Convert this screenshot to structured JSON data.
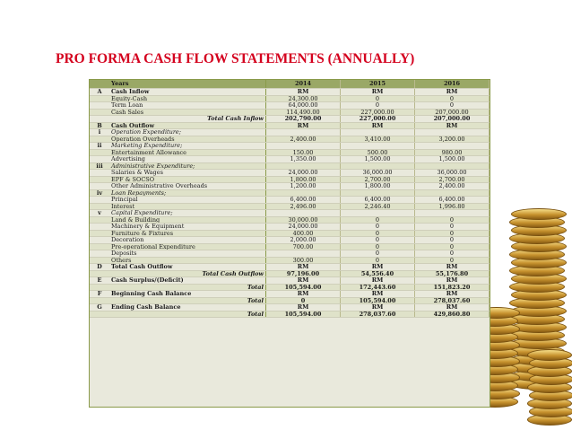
{
  "title": "PRO FORMA CASH FLOW STATEMENTS (ANNUALLY)",
  "table": {
    "header": {
      "label": "",
      "desc": "Years",
      "cols": [
        "2014",
        "2015",
        "2016"
      ]
    },
    "rows": [
      {
        "label": "A",
        "desc": "Cash Inflow",
        "vals": [
          "RM",
          "RM",
          "RM"
        ],
        "style": "bold"
      },
      {
        "label": "",
        "desc": "Equity-Cash",
        "vals": [
          "24,300.00",
          "0",
          "0"
        ],
        "style": ""
      },
      {
        "label": "",
        "desc": "Term Loan",
        "vals": [
          "64,000.00",
          "0",
          "0"
        ],
        "style": ""
      },
      {
        "label": "",
        "desc": "Cash Sales",
        "vals": [
          "114,490.00",
          "227,000.00",
          "207,000.00"
        ],
        "style": ""
      },
      {
        "label": "",
        "desc": "Total Cash Inflow",
        "vals": [
          "202,790.00",
          "227,000.00",
          "207,000.00"
        ],
        "style": "total"
      },
      {
        "label": "B",
        "desc": "Cash Outflow",
        "vals": [
          "RM",
          "RM",
          "RM"
        ],
        "style": "bold"
      },
      {
        "label": "i",
        "desc": "Operation Expenditure;",
        "vals": [
          "",
          "",
          ""
        ],
        "style": "italic"
      },
      {
        "label": "",
        "desc": "Operation Overheads",
        "vals": [
          "2,400.00",
          "3,410.00",
          "3,200.00"
        ],
        "style": ""
      },
      {
        "label": "ii",
        "desc": "Marketing Expenditure;",
        "vals": [
          "",
          "",
          ""
        ],
        "style": "italic"
      },
      {
        "label": "",
        "desc": "Entertainment Allowance",
        "vals": [
          "150.00",
          "500.00",
          "980.00"
        ],
        "style": ""
      },
      {
        "label": "",
        "desc": "Advertising",
        "vals": [
          "1,350.00",
          "1,500.00",
          "1,500.00"
        ],
        "style": ""
      },
      {
        "label": "iii",
        "desc": "Administrative Expenditure;",
        "vals": [
          "",
          "",
          ""
        ],
        "style": "italic"
      },
      {
        "label": "",
        "desc": "Salaries & Wages",
        "vals": [
          "24,000.00",
          "36,000.00",
          "36,000.00"
        ],
        "style": ""
      },
      {
        "label": "",
        "desc": "EPF & SOCSO",
        "vals": [
          "1,800.00",
          "2,700.00",
          "2,700.00"
        ],
        "style": ""
      },
      {
        "label": "",
        "desc": "Other Administrative Overheads",
        "vals": [
          "1,200.00",
          "1,800.00",
          "2,400.00"
        ],
        "style": ""
      },
      {
        "label": "iv",
        "desc": "Loan Repayments;",
        "vals": [
          "",
          "",
          ""
        ],
        "style": "italic"
      },
      {
        "label": "",
        "desc": "Principal",
        "vals": [
          "6,400.00",
          "6,400.00",
          "6,400.00"
        ],
        "style": ""
      },
      {
        "label": "",
        "desc": "Interest",
        "vals": [
          "2,496.00",
          "2,246.40",
          "1,996.80"
        ],
        "style": ""
      },
      {
        "label": "v",
        "desc": "Capital Expenditure;",
        "vals": [
          "",
          "",
          ""
        ],
        "style": "italic"
      },
      {
        "label": "",
        "desc": "Land & Building",
        "vals": [
          "30,000.00",
          "0",
          "0"
        ],
        "style": ""
      },
      {
        "label": "",
        "desc": "Machinery & Equipment",
        "vals": [
          "24,000.00",
          "0",
          "0"
        ],
        "style": ""
      },
      {
        "label": "",
        "desc": "Furniture & Fixtures",
        "vals": [
          "400.00",
          "0",
          "0"
        ],
        "style": ""
      },
      {
        "label": "",
        "desc": "Decoration",
        "vals": [
          "2,000.00",
          "0",
          "0"
        ],
        "style": ""
      },
      {
        "label": "",
        "desc": "Pre-operational Expenditure",
        "vals": [
          "700.00",
          "0",
          "0"
        ],
        "style": ""
      },
      {
        "label": "",
        "desc": "Deposits",
        "vals": [
          "",
          "0",
          "0"
        ],
        "style": ""
      },
      {
        "label": "",
        "desc": "Others",
        "vals": [
          "300.00",
          "0",
          "0"
        ],
        "style": ""
      },
      {
        "label": "D",
        "desc": "Total Cash Outflow",
        "vals": [
          "RM",
          "RM",
          "RM"
        ],
        "style": "bold"
      },
      {
        "label": "",
        "desc": "Total Cash Outflow",
        "vals": [
          "97,196.00",
          "54,556.40",
          "55,176.80"
        ],
        "style": "total"
      },
      {
        "label": "E",
        "desc": "Cash Surplus/(Deficit)",
        "vals": [
          "RM",
          "RM",
          "RM"
        ],
        "style": "bold"
      },
      {
        "label": "",
        "desc": "Total",
        "vals": [
          "105,594.00",
          "172,443.60",
          "151,823.20"
        ],
        "style": "total"
      },
      {
        "label": "F",
        "desc": "Beginning Cash Balance",
        "vals": [
          "RM",
          "RM",
          "RM"
        ],
        "style": "bold"
      },
      {
        "label": "",
        "desc": "Total",
        "vals": [
          "0",
          "105,594.00",
          "278,037.60"
        ],
        "style": "total"
      },
      {
        "label": "G",
        "desc": "Ending Cash Balance",
        "vals": [
          "RM",
          "RM",
          "RM"
        ],
        "style": "bold"
      },
      {
        "label": "",
        "desc": "Total",
        "vals": [
          "105,594.00",
          "278,037.60",
          "429,860.80"
        ],
        "style": "total"
      }
    ]
  }
}
